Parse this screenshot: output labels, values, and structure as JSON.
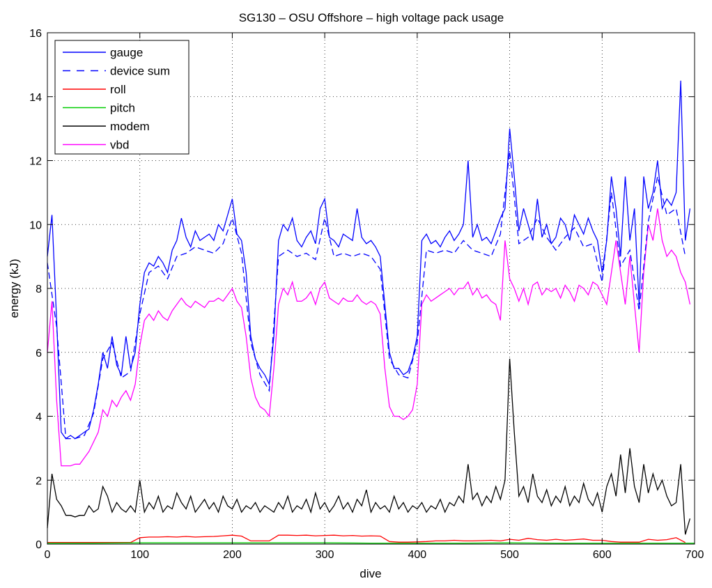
{
  "chart_data": {
    "type": "line",
    "title": "SG130 – OSU Offshore – high voltage pack usage",
    "xlabel": "dive",
    "ylabel": "energy (kJ)",
    "xlim": [
      0,
      700
    ],
    "ylim": [
      0,
      16
    ],
    "xticks": [
      0,
      100,
      200,
      300,
      400,
      500,
      600,
      700
    ],
    "yticks": [
      0,
      2,
      4,
      6,
      8,
      10,
      12,
      14,
      16
    ],
    "grid": true,
    "legend_position": "top-left",
    "series": [
      {
        "name": "gauge",
        "color": "#0000ff",
        "dash": false,
        "step": 5,
        "values": [
          9,
          10.3,
          7,
          3.5,
          3.3,
          3.4,
          3.3,
          3.4,
          3.5,
          3.6,
          4.2,
          5,
          6,
          5.5,
          6.5,
          5.6,
          5.3,
          6.5,
          5.5,
          6,
          7.5,
          8.5,
          8.8,
          8.7,
          9,
          8.8,
          8.5,
          9.2,
          9.5,
          10.2,
          9.6,
          9.3,
          9.8,
          9.5,
          9.6,
          9.7,
          9.5,
          10,
          9.8,
          10.3,
          10.8,
          9.7,
          9.5,
          8.5,
          6.5,
          5.8,
          5.5,
          5.3,
          5,
          6.5,
          9.5,
          10,
          9.8,
          10.2,
          9.5,
          9.3,
          9.6,
          9.8,
          9.4,
          10.5,
          10.8,
          9.6,
          9.5,
          9.3,
          9.7,
          9.6,
          9.5,
          10.5,
          9.6,
          9.4,
          9.5,
          9.3,
          9,
          7.5,
          6,
          5.5,
          5.5,
          5.3,
          5.4,
          5.8,
          6.5,
          9.5,
          9.7,
          9.4,
          9.5,
          9.3,
          9.6,
          9.8,
          9.5,
          9.7,
          10,
          12,
          9.6,
          10,
          9.5,
          9.6,
          9.4,
          9.8,
          10.2,
          10.5,
          13,
          11.5,
          9.8,
          10.5,
          10,
          9.5,
          10.8,
          9.6,
          10,
          9.4,
          9.6,
          10.2,
          10,
          9.5,
          10.3,
          10,
          9.7,
          10.2,
          9.8,
          9.5,
          8.5,
          9.5,
          11.5,
          10.5,
          9,
          11.5,
          9.5,
          10.5,
          7.5,
          11.5,
          10.5,
          11,
          12,
          10.5,
          10.8,
          10.6,
          11,
          14.5,
          9.5,
          10.5
        ]
      },
      {
        "name": "device sum",
        "color": "#0000ff",
        "dash": true,
        "step": 10,
        "values": [
          8.8,
          6.8,
          3.3,
          3.3,
          3.4,
          4.1,
          5.8,
          6.3,
          5.2,
          5.4,
          7.2,
          8.5,
          8.7,
          8.3,
          9,
          9.1,
          9.3,
          9.2,
          9.1,
          9.4,
          10.2,
          9.1,
          6.3,
          5.3,
          4.8,
          9,
          9.2,
          9,
          9.1,
          8.9,
          10.2,
          9,
          9.1,
          9,
          9.1,
          9,
          8.6,
          5.8,
          5.3,
          5.2,
          6.3,
          9.2,
          9.1,
          9.2,
          9.1,
          9.5,
          9.2,
          9.1,
          9,
          9.7,
          12.3,
          9.4,
          9.6,
          10.2,
          9.6,
          9.2,
          9.6,
          9.9,
          9.3,
          9.4,
          8.2,
          11,
          8.7,
          9.2,
          7.3,
          10.1,
          11.5,
          10.3,
          10.5,
          9
        ]
      },
      {
        "name": "roll",
        "color": "#ff0000",
        "dash": false,
        "step": 10,
        "values": [
          0.05,
          0.05,
          0.05,
          0.05,
          0.05,
          0.05,
          0.05,
          0.05,
          0.05,
          0.05,
          0.2,
          0.22,
          0.22,
          0.23,
          0.22,
          0.24,
          0.22,
          0.23,
          0.24,
          0.26,
          0.28,
          0.25,
          0.1,
          0.1,
          0.1,
          0.28,
          0.28,
          0.27,
          0.28,
          0.26,
          0.27,
          0.28,
          0.26,
          0.27,
          0.25,
          0.26,
          0.25,
          0.08,
          0.06,
          0.06,
          0.07,
          0.08,
          0.1,
          0.1,
          0.12,
          0.1,
          0.1,
          0.11,
          0.12,
          0.1,
          0.15,
          0.12,
          0.18,
          0.14,
          0.12,
          0.15,
          0.12,
          0.14,
          0.16,
          0.12,
          0.12,
          0.08,
          0.06,
          0.06,
          0.06,
          0.15,
          0.12,
          0.14,
          0.2,
          0.05
        ]
      },
      {
        "name": "pitch",
        "color": "#00cc00",
        "dash": false,
        "step": 50,
        "values": [
          0.03,
          0.03,
          0.04,
          0.04,
          0.04,
          0.04,
          0.04,
          0.03,
          0.03,
          0.03,
          0.04,
          0.03,
          0.03,
          0.03,
          0.03
        ]
      },
      {
        "name": "modem",
        "color": "#000000",
        "dash": false,
        "step": 5,
        "values": [
          0.5,
          2.2,
          1.4,
          1.2,
          0.9,
          0.9,
          0.85,
          0.9,
          0.9,
          1.2,
          1,
          1.1,
          1.8,
          1.5,
          1,
          1.3,
          1.1,
          1,
          1.2,
          1,
          2,
          1,
          1.3,
          1.1,
          1.5,
          1,
          1.2,
          1.1,
          1.6,
          1.3,
          1.1,
          1.5,
          1,
          1.2,
          1.4,
          1.1,
          1.3,
          1,
          1.5,
          1.2,
          1.1,
          1.4,
          1,
          1.2,
          1.1,
          1.3,
          1,
          1.2,
          1.1,
          1,
          1.3,
          1.1,
          1.5,
          1,
          1.2,
          1.1,
          1.4,
          1,
          1.6,
          1.1,
          1.3,
          1,
          1.2,
          1.5,
          1.1,
          1.3,
          1,
          1.4,
          1.2,
          1.7,
          1,
          1.3,
          1.1,
          1.2,
          1,
          1.5,
          1.1,
          1.3,
          1,
          1.2,
          1.1,
          1.3,
          1,
          1.2,
          1.1,
          1.4,
          1,
          1.3,
          1.2,
          1.5,
          1.3,
          2.5,
          1.4,
          1.6,
          1.2,
          1.5,
          1.3,
          1.8,
          1.4,
          2,
          5.8,
          3.5,
          1.5,
          1.8,
          1.3,
          2.2,
          1.5,
          1.3,
          1.7,
          1.2,
          1.5,
          1.3,
          1.8,
          1.2,
          1.5,
          1.3,
          1.9,
          1.4,
          1.2,
          1.6,
          1,
          1.8,
          2.2,
          1.5,
          2.8,
          1.6,
          3,
          1.8,
          1.3,
          2.5,
          1.6,
          2.2,
          1.7,
          2,
          1.5,
          1.2,
          1.3,
          2.5,
          0.3,
          0.8
        ]
      },
      {
        "name": "vbd",
        "color": "#ff00ff",
        "dash": false,
        "step": 5,
        "values": [
          6,
          7.6,
          4.5,
          2.45,
          2.45,
          2.45,
          2.5,
          2.5,
          2.7,
          2.9,
          3.2,
          3.5,
          4.2,
          4,
          4.5,
          4.3,
          4.6,
          4.8,
          4.5,
          5,
          6.2,
          7,
          7.2,
          7,
          7.3,
          7.1,
          7,
          7.3,
          7.5,
          7.7,
          7.5,
          7.4,
          7.6,
          7.5,
          7.4,
          7.6,
          7.6,
          7.7,
          7.6,
          7.8,
          8,
          7.6,
          7.4,
          6.5,
          5.2,
          4.6,
          4.3,
          4.2,
          4,
          5.5,
          7.5,
          8,
          7.8,
          8.2,
          7.6,
          7.6,
          7.7,
          7.9,
          7.5,
          8,
          8.2,
          7.7,
          7.6,
          7.5,
          7.7,
          7.6,
          7.6,
          7.8,
          7.6,
          7.5,
          7.6,
          7.5,
          7.2,
          5.5,
          4.3,
          4,
          4,
          3.9,
          4,
          4.2,
          5,
          7.5,
          7.8,
          7.6,
          7.7,
          7.8,
          7.9,
          8,
          7.8,
          8,
          8,
          8.2,
          7.8,
          8,
          7.7,
          7.8,
          7.6,
          7.5,
          7,
          9.5,
          8.3,
          8,
          7.6,
          8,
          7.5,
          8.1,
          8.2,
          7.8,
          8,
          7.9,
          8,
          7.7,
          8.1,
          7.9,
          7.6,
          8.1,
          8,
          7.8,
          8.2,
          8.1,
          7.8,
          7.5,
          8.5,
          9.5,
          8.5,
          7.5,
          9,
          7.5,
          6,
          8.5,
          10,
          9.5,
          10.5,
          9.5,
          9,
          9.2,
          9,
          8.5,
          8.2,
          7.5
        ]
      }
    ]
  }
}
